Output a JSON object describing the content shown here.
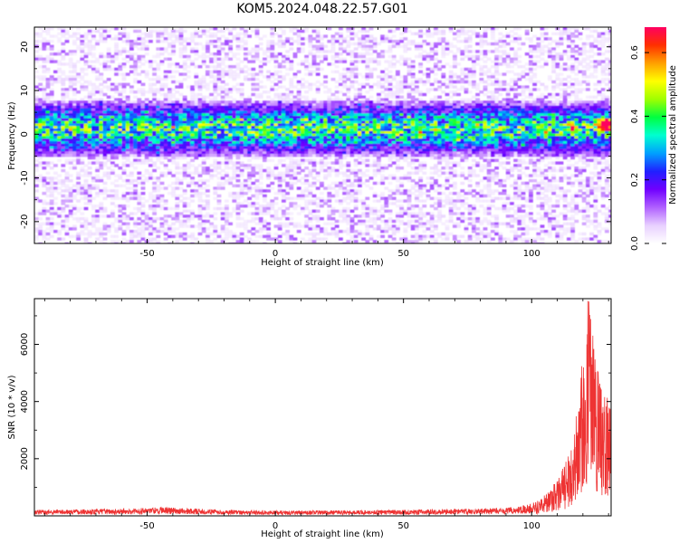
{
  "figure_title": "KOM5.2024.048.22.57.G01",
  "chart_data": [
    {
      "type": "heatmap",
      "xlabel": "Height of straight line (km)",
      "ylabel": "Frequency (Hz)",
      "xlim": [
        -94,
        131
      ],
      "ylim": [
        -25,
        24.5
      ],
      "xticks": [
        -50,
        0,
        50,
        100
      ],
      "yticks": [
        -20,
        -10,
        0,
        10,
        20
      ],
      "xtick_labels": [
        "-50",
        "0",
        "50",
        "100"
      ],
      "ytick_labels": [
        "-20",
        "-10",
        "0",
        "10",
        "20"
      ],
      "colorbar": {
        "label": "Normalized spectral amplitude",
        "range": [
          0.0,
          0.68
        ],
        "ticks": [
          0.0,
          0.2,
          0.4,
          0.6
        ],
        "tick_labels": [
          "0.0",
          "0.2",
          "0.4",
          "0.6"
        ],
        "colormap": [
          "#ffffff",
          "#e8d0ff",
          "#b060ff",
          "#7000ff",
          "#2020ff",
          "#00a0ff",
          "#00ffd0",
          "#00ff40",
          "#a0ff00",
          "#ffff00",
          "#ffa000",
          "#ff3000",
          "#ff0060"
        ]
      },
      "energy_band": {
        "center_frequency": 1.5,
        "half_width": 5,
        "peak_height": 128,
        "peak_frequency": 2.5
      }
    },
    {
      "type": "line",
      "xlabel": "Height of straight line (km)",
      "ylabel": "SNR (10 * v/v)",
      "xlim": [
        -94,
        131
      ],
      "ylim": [
        0,
        7600
      ],
      "xticks": [
        -50,
        0,
        50,
        100
      ],
      "yticks": [
        2000,
        4000,
        6000
      ],
      "xtick_labels": [
        "-50",
        "0",
        "50",
        "100"
      ],
      "ytick_labels": [
        "2000",
        "4000",
        "6000"
      ],
      "series": [
        {
          "color": "#ee3333",
          "profile_x": [
            -94,
            -60,
            -45,
            -20,
            0,
            50,
            90,
            100,
            105,
            110,
            115,
            120,
            122,
            124,
            126,
            128,
            131
          ],
          "profile_y": [
            150,
            180,
            220,
            150,
            130,
            150,
            200,
            300,
            600,
            1000,
            1800,
            4500,
            6500,
            5000,
            4000,
            3500,
            3200
          ]
        }
      ]
    }
  ]
}
